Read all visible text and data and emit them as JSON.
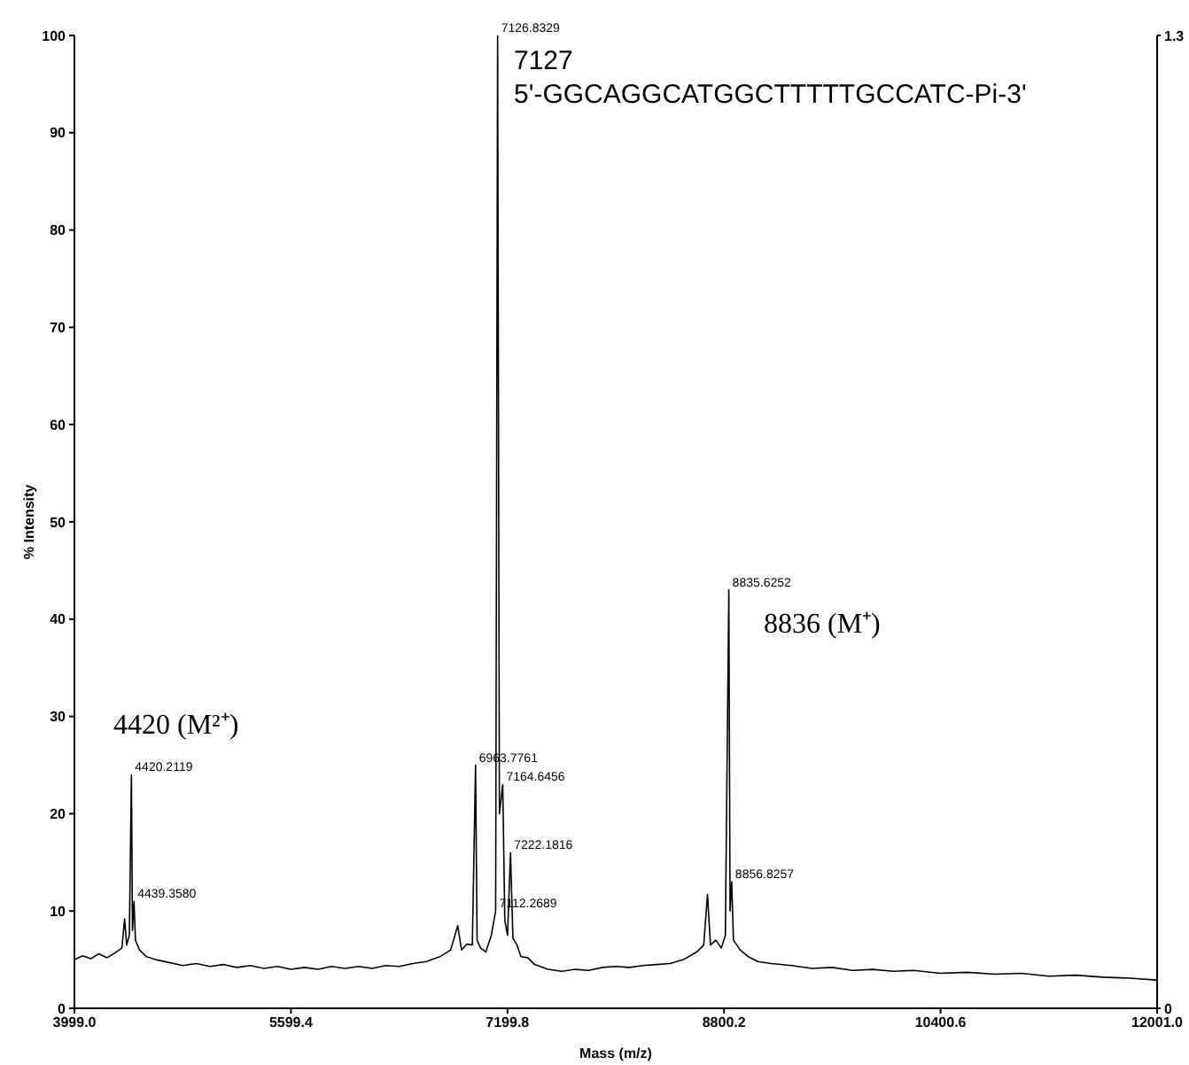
{
  "chart_data": {
    "type": "line",
    "xlabel": "Mass (m/z)",
    "ylabel": "% Intensity",
    "xlim": [
      3999,
      12001
    ],
    "xticks": [
      {
        "value": 3999,
        "label": "3999.0"
      },
      5599.4,
      7199.8,
      8800.2,
      10400.6,
      {
        "value": 12001,
        "label": "12001.0"
      }
    ],
    "ylim": [
      0,
      100
    ],
    "yticks": [
      0,
      10,
      20,
      30,
      40,
      50,
      60,
      70,
      80,
      90,
      100
    ],
    "y2lim": [
      0,
      1.3
    ],
    "y2ticks": [
      0,
      1.3
    ],
    "grid": false,
    "legend": false,
    "marker": "none",
    "line_style": "solid",
    "series": [
      {
        "color": "#000000",
        "x": [
          4000,
          4060,
          4120,
          4180,
          4240,
          4300,
          4350,
          4370,
          4385,
          4405,
          4420.2119,
          4428,
          4439.358,
          4450,
          4480,
          4530,
          4600,
          4700,
          4800,
          4900,
          5000,
          5100,
          5200,
          5300,
          5400,
          5500,
          5600,
          5700,
          5800,
          5900,
          6000,
          6100,
          6200,
          6300,
          6400,
          6500,
          6600,
          6700,
          6780,
          6832,
          6860,
          6900,
          6940,
          6963.7761,
          6975,
          7000,
          7040,
          7080,
          7112.2689,
          7126.8329,
          7140,
          7164.6456,
          7180,
          7200,
          7222.1816,
          7240,
          7270,
          7300,
          7350,
          7400,
          7500,
          7600,
          7700,
          7800,
          7900,
          8000,
          8100,
          8200,
          8300,
          8400,
          8500,
          8600,
          8650,
          8678,
          8700,
          8740,
          8780,
          8810,
          8835.6252,
          8845,
          8856.8257,
          8870,
          8920,
          8980,
          9050,
          9150,
          9300,
          9450,
          9600,
          9750,
          9900,
          10050,
          10200,
          10400,
          10600,
          10800,
          11000,
          11200,
          11400,
          11600,
          11800,
          12000
        ],
        "values": [
          5.0,
          5.4,
          5.1,
          5.6,
          5.2,
          5.7,
          6.2,
          9.2,
          6.5,
          7.5,
          24,
          8,
          11,
          7,
          6.0,
          5.3,
          5.0,
          4.7,
          4.4,
          4.6,
          4.3,
          4.5,
          4.2,
          4.4,
          4.1,
          4.3,
          4.0,
          4.2,
          4.0,
          4.3,
          4.1,
          4.3,
          4.1,
          4.4,
          4.3,
          4.6,
          4.8,
          5.3,
          6.0,
          8.5,
          6.0,
          6.6,
          6.5,
          25,
          7,
          6.2,
          5.8,
          7.5,
          10,
          100,
          20,
          23,
          9,
          7.5,
          16,
          7.2,
          6.5,
          5.3,
          5.2,
          4.5,
          4.0,
          3.8,
          4.0,
          3.9,
          4.2,
          4.3,
          4.2,
          4.4,
          4.5,
          4.6,
          5.0,
          5.8,
          6.5,
          11.7,
          6.5,
          7.0,
          6.2,
          7.5,
          43,
          10,
          13,
          7,
          6,
          5.3,
          4.8,
          4.6,
          4.4,
          4.1,
          4.2,
          3.9,
          4.0,
          3.8,
          3.9,
          3.6,
          3.7,
          3.5,
          3.6,
          3.3,
          3.4,
          3.2,
          3.1,
          2.9
        ],
        "name": null
      }
    ],
    "annotations": [
      "7127",
      "5'-GGCAGGCATGGCTTTTTGCCATC-Pi-3'",
      "4420 (M²⁺)",
      "8836 (M⁺)",
      {
        "text": "4420.2119",
        "x": 4420.2119,
        "y": 24
      },
      {
        "text": "4439.3580",
        "x": 4439.358,
        "y": 11
      },
      {
        "text": "6963.7761",
        "x": 6963.7761,
        "y": 25
      },
      {
        "text": "7112.2689",
        "x": 7112.2689,
        "y": 10
      },
      {
        "text": "7126.8329",
        "x": 7126.8329,
        "y": 100
      },
      {
        "text": "7164.6456",
        "x": 7164.6456,
        "y": 23
      },
      {
        "text": "7222.1816",
        "x": 7222.1816,
        "y": 16
      },
      {
        "text": "8835.6252",
        "x": 8835.6252,
        "y": 43
      },
      {
        "text": "8856.8257",
        "x": 8856.8257,
        "y": 13
      }
    ]
  }
}
